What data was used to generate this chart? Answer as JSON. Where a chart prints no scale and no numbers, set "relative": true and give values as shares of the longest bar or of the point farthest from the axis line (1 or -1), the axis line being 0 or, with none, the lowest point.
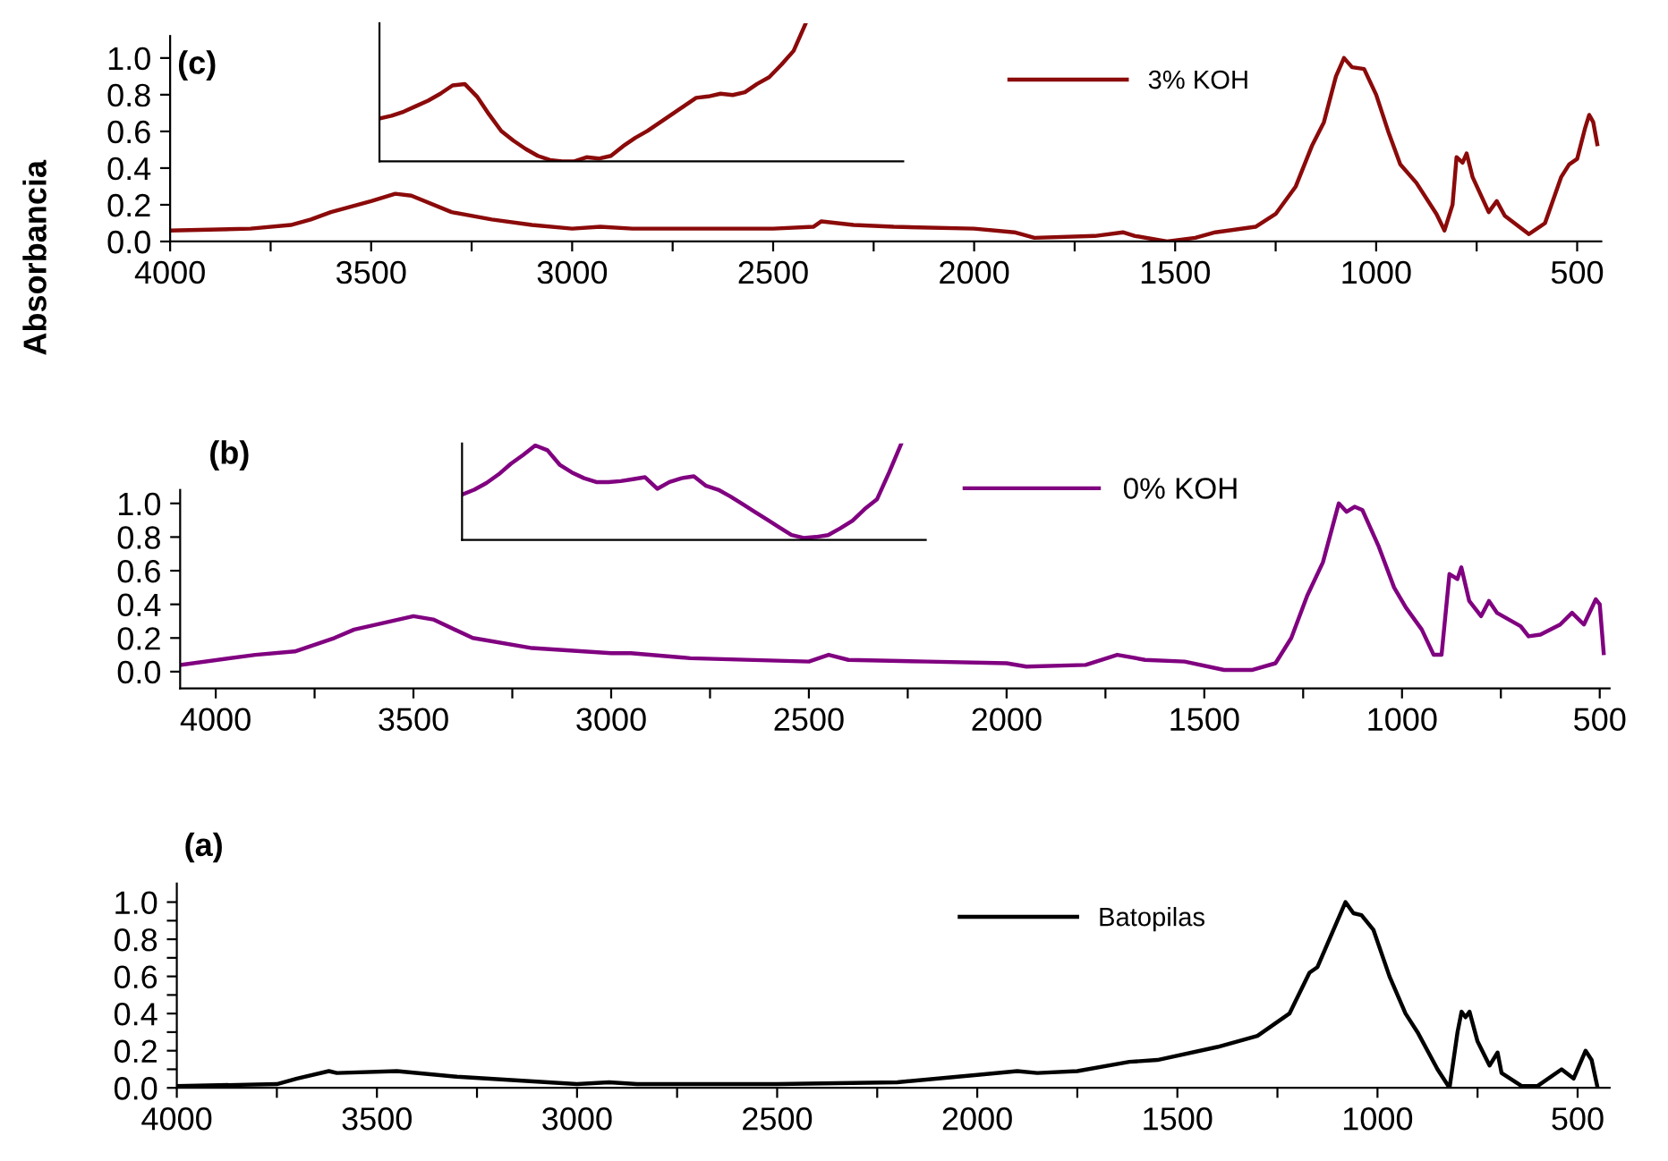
{
  "chart_data": [
    {
      "type": "line",
      "title": "(c)",
      "ylabel": "Absorbancia",
      "legend": "top right",
      "grid": false,
      "x": [
        4000,
        3800,
        3700,
        3650,
        3600,
        3500,
        3440,
        3400,
        3300,
        3200,
        3100,
        3000,
        2930,
        2850,
        2500,
        2400,
        2380,
        2340,
        2300,
        2200,
        2000,
        1900,
        1850,
        1700,
        1630,
        1600,
        1520,
        1450,
        1400,
        1300,
        1250,
        1200,
        1160,
        1130,
        1100,
        1080,
        1060,
        1030,
        1000,
        970,
        940,
        900,
        850,
        830,
        810,
        800,
        785,
        775,
        760,
        720,
        700,
        680,
        620,
        580,
        540,
        520,
        500,
        480,
        470,
        460,
        450
      ],
      "series": [
        {
          "name": "3% KOH",
          "color": "#8b0a0a",
          "values": [
            0.06,
            0.07,
            0.09,
            0.12,
            0.16,
            0.22,
            0.26,
            0.25,
            0.16,
            0.12,
            0.09,
            0.07,
            0.08,
            0.07,
            0.07,
            0.08,
            0.11,
            0.1,
            0.09,
            0.08,
            0.07,
            0.05,
            0.02,
            0.03,
            0.05,
            0.03,
            0.0,
            0.02,
            0.05,
            0.08,
            0.15,
            0.3,
            0.52,
            0.65,
            0.9,
            1.0,
            0.95,
            0.94,
            0.8,
            0.6,
            0.42,
            0.32,
            0.15,
            0.06,
            0.2,
            0.46,
            0.43,
            0.48,
            0.35,
            0.16,
            0.22,
            0.14,
            0.04,
            0.1,
            0.35,
            0.42,
            0.45,
            0.62,
            0.69,
            0.65,
            0.53
          ]
        }
      ],
      "xlim": [
        4000,
        440
      ],
      "ylim": [
        0,
        1.12
      ],
      "xticks": [
        4000,
        {
          "value": 3750,
          "label": null
        },
        3500,
        {
          "value": 3250,
          "label": null
        },
        3000,
        {
          "value": 2750,
          "label": null
        },
        2500,
        {
          "value": 2250,
          "label": null
        },
        2000,
        {
          "value": 1750,
          "label": null
        },
        1500,
        {
          "value": 1250,
          "label": null
        },
        1000,
        {
          "value": 750,
          "label": null
        },
        500
      ],
      "yticks": [
        {
          "value": 0,
          "label": "0.0"
        },
        0.2,
        0.4,
        0.6,
        0.8,
        {
          "value": 1,
          "label": "1.0"
        }
      ]
    },
    {
      "type": "line",
      "relative": true,
      "tick_labels": false,
      "categories": [
        null,
        null,
        null,
        null,
        null,
        null,
        null,
        null,
        null,
        null,
        null,
        null,
        null,
        null,
        null,
        null,
        null,
        null,
        null,
        null,
        null,
        null,
        null,
        null,
        null,
        null,
        null,
        null,
        null,
        null,
        null,
        null,
        null,
        null,
        null,
        null,
        null,
        null,
        null,
        null,
        null,
        null,
        null,
        null
      ],
      "series": [
        {
          "color": "#8b0a0a",
          "values": [
            0.31,
            0.33,
            0.36,
            0.4,
            0.44,
            0.49,
            0.55,
            0.56,
            0.47,
            0.34,
            0.22,
            0.15,
            0.09,
            0.04,
            0.01,
            0.0,
            0.0,
            0.03,
            0.02,
            0.04,
            0.11,
            0.17,
            0.22,
            0.28,
            0.34,
            0.4,
            0.46,
            0.47,
            0.49,
            0.48,
            0.5,
            0.56,
            0.61,
            0.7,
            0.8,
            1.0,
            null,
            null,
            null,
            null,
            null,
            null,
            null,
            null
          ]
        }
      ]
    },
    {
      "type": "line",
      "title": "(b)",
      "legend": "top right",
      "grid": false,
      "x": [
        4090,
        3900,
        3800,
        3700,
        3650,
        3500,
        3450,
        3350,
        3200,
        3000,
        2950,
        2800,
        2500,
        2450,
        2400,
        2200,
        2000,
        1950,
        1800,
        1720,
        1650,
        1550,
        1450,
        1380,
        1320,
        1280,
        1240,
        1200,
        1160,
        1140,
        1120,
        1100,
        1060,
        1020,
        990,
        950,
        920,
        900,
        880,
        860,
        850,
        830,
        800,
        780,
        760,
        700,
        680,
        650,
        600,
        570,
        540,
        510,
        500,
        490
      ],
      "series": [
        {
          "name": "0% KOH",
          "color": "#800080",
          "values": [
            0.04,
            0.1,
            0.12,
            0.2,
            0.25,
            0.33,
            0.31,
            0.2,
            0.14,
            0.11,
            0.11,
            0.08,
            0.06,
            0.1,
            0.07,
            0.06,
            0.05,
            0.03,
            0.04,
            0.1,
            0.07,
            0.06,
            0.01,
            0.01,
            0.05,
            0.2,
            0.45,
            0.65,
            1.0,
            0.95,
            0.98,
            0.96,
            0.75,
            0.5,
            0.38,
            0.25,
            0.1,
            0.1,
            0.58,
            0.55,
            0.62,
            0.42,
            0.33,
            0.42,
            0.35,
            0.27,
            0.21,
            0.22,
            0.28,
            0.35,
            0.28,
            0.43,
            0.4,
            0.11
          ]
        }
      ],
      "xlim": [
        4090,
        475
      ],
      "ylim": [
        -0.1,
        1.08
      ],
      "xticks": [
        4000,
        {
          "value": 3750,
          "label": null
        },
        3500,
        {
          "value": 3250,
          "label": null
        },
        3000,
        {
          "value": 2750,
          "label": null
        },
        2500,
        {
          "value": 2250,
          "label": null
        },
        2000,
        {
          "value": 1750,
          "label": null
        },
        1500,
        {
          "value": 1250,
          "label": null
        },
        1000,
        {
          "value": 750,
          "label": null
        },
        500
      ],
      "yticks": [
        {
          "value": 0,
          "label": "0.0"
        },
        0.2,
        0.4,
        0.6,
        0.8,
        {
          "value": 1,
          "label": "1.0"
        }
      ]
    },
    {
      "type": "line",
      "relative": true,
      "tick_labels": false,
      "categories": [
        null,
        null,
        null,
        null,
        null,
        null,
        null,
        null,
        null,
        null,
        null,
        null,
        null,
        null,
        null,
        null,
        null,
        null,
        null,
        null,
        null,
        null,
        null,
        null,
        null,
        null,
        null,
        null,
        null,
        null,
        null,
        null,
        null,
        null,
        null,
        null,
        null,
        null,
        null
      ],
      "series": [
        {
          "color": "#800080",
          "values": [
            0.47,
            0.52,
            0.59,
            0.68,
            0.79,
            0.88,
            0.98,
            0.93,
            0.78,
            0.7,
            0.64,
            0.6,
            0.6,
            0.61,
            0.63,
            0.65,
            0.53,
            0.6,
            0.64,
            0.66,
            0.56,
            0.52,
            0.45,
            0.37,
            0.29,
            0.21,
            0.13,
            0.05,
            0.02,
            0.03,
            0.05,
            0.12,
            0.2,
            0.32,
            0.42,
            0.7,
            1.0,
            null,
            null
          ]
        }
      ]
    },
    {
      "type": "line",
      "title": "(a)",
      "legend": "top right",
      "grid": false,
      "x": [
        4000,
        3750,
        3700,
        3620,
        3600,
        3450,
        3300,
        3000,
        2920,
        2850,
        2500,
        2200,
        2000,
        1900,
        1850,
        1750,
        1620,
        1550,
        1400,
        1300,
        1220,
        1170,
        1150,
        1110,
        1080,
        1060,
        1040,
        1010,
        970,
        930,
        900,
        850,
        820,
        800,
        790,
        780,
        770,
        750,
        720,
        700,
        690,
        640,
        600,
        540,
        510,
        480,
        465,
        450
      ],
      "series": [
        {
          "name": "Batopilas",
          "color": "#000000",
          "values": [
            0.01,
            0.02,
            0.05,
            0.09,
            0.08,
            0.09,
            0.06,
            0.02,
            0.03,
            0.02,
            0.02,
            0.03,
            0.07,
            0.09,
            0.08,
            0.09,
            0.14,
            0.15,
            0.22,
            0.28,
            0.4,
            0.62,
            0.65,
            0.85,
            1.0,
            0.94,
            0.93,
            0.85,
            0.6,
            0.4,
            0.3,
            0.1,
            0.0,
            0.3,
            0.41,
            0.38,
            0.41,
            0.25,
            0.12,
            0.19,
            0.08,
            0.01,
            0.01,
            0.1,
            0.05,
            0.2,
            0.15,
            0.0
          ]
        }
      ],
      "xlim": [
        4000,
        420
      ],
      "ylim": [
        0,
        1.1
      ],
      "xticks": [
        4000,
        {
          "value": 3750,
          "label": null
        },
        3500,
        {
          "value": 3250,
          "label": null
        },
        3000,
        {
          "value": 2750,
          "label": null
        },
        2500,
        {
          "value": 2250,
          "label": null
        },
        2000,
        {
          "value": 1750,
          "label": null
        },
        1500,
        {
          "value": 1250,
          "label": null
        },
        1000,
        {
          "value": 750,
          "label": null
        },
        500
      ],
      "yticks": [
        {
          "value": 0,
          "label": "0.0"
        },
        {
          "value": 0.1,
          "label": null
        },
        0.2,
        {
          "value": 0.3,
          "label": null
        },
        0.4,
        {
          "value": 0.5,
          "label": null
        },
        0.6,
        {
          "value": 0.7,
          "label": null
        },
        0.8,
        {
          "value": 0.9,
          "label": null
        },
        {
          "value": 1,
          "label": "1.0"
        }
      ]
    }
  ]
}
